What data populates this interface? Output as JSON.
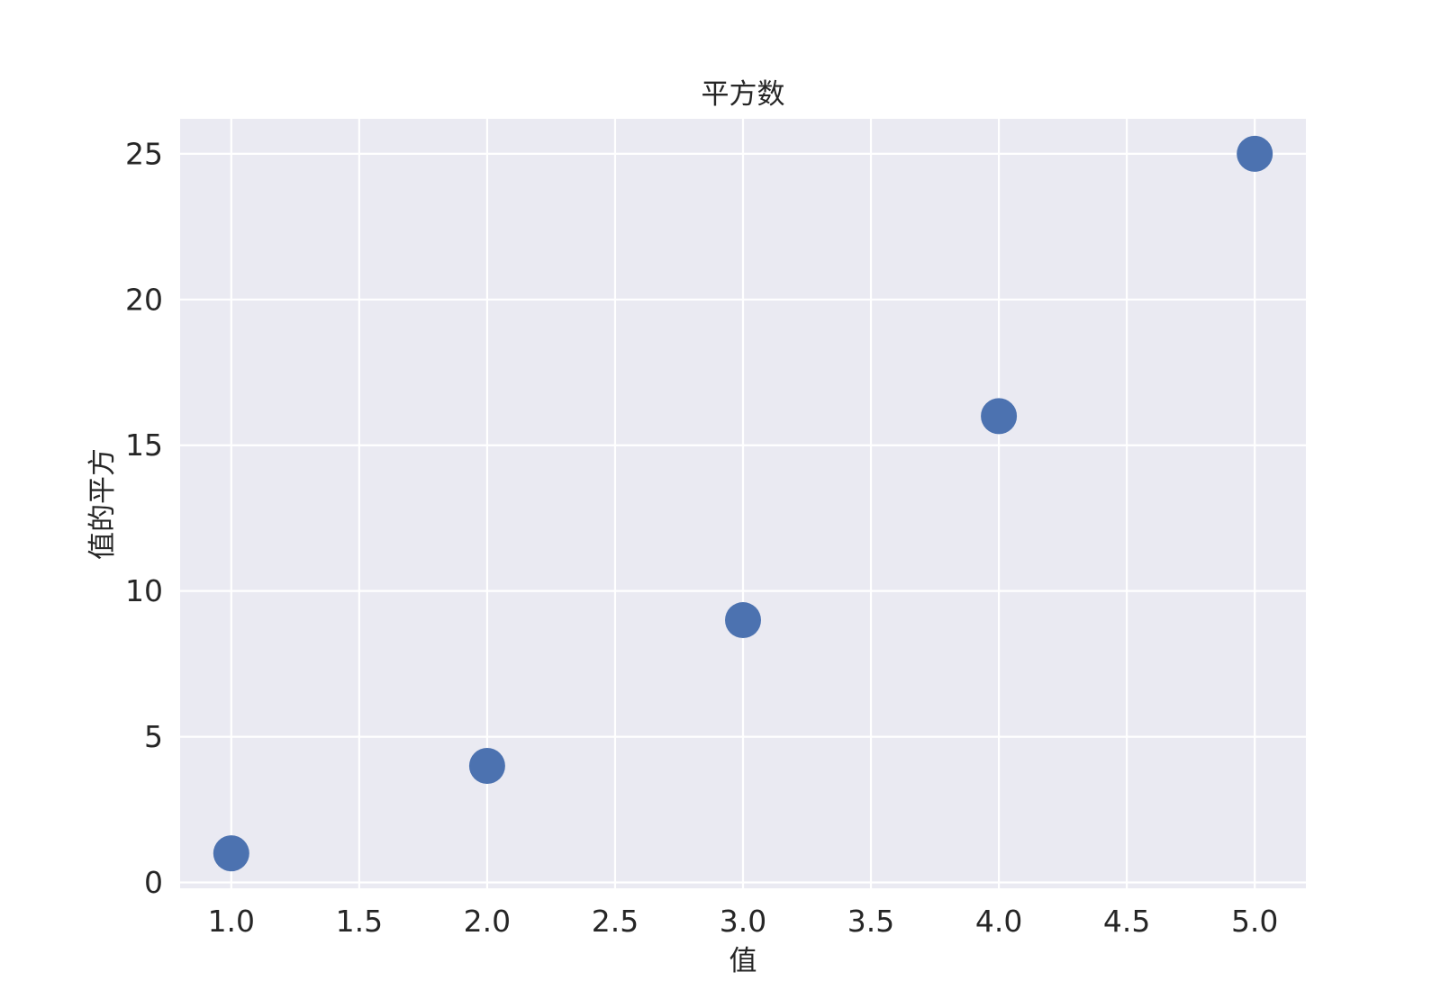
{
  "chart_data": {
    "type": "scatter",
    "title": "平方数",
    "xlabel": "值",
    "ylabel": "值的平方",
    "x": [
      1,
      2,
      3,
      4,
      5
    ],
    "y": [
      1,
      4,
      9,
      16,
      25
    ],
    "xlim": [
      0.8,
      5.2
    ],
    "ylim": [
      -0.2,
      26.2
    ],
    "xticks": [
      1.0,
      1.5,
      2.0,
      2.5,
      3.0,
      3.5,
      4.0,
      4.5,
      5.0
    ],
    "xtick_labels": [
      "1.0",
      "1.5",
      "2.0",
      "2.5",
      "3.0",
      "3.5",
      "4.0",
      "4.5",
      "5.0"
    ],
    "yticks": [
      0,
      5,
      10,
      15,
      20,
      25
    ],
    "ytick_labels": [
      "0",
      "5",
      "10",
      "15",
      "20",
      "25"
    ],
    "grid": true,
    "colors": {
      "marker": "#4c72b0",
      "plot_background": "#eaeaf2",
      "grid": "#ffffff",
      "text": "#262626"
    }
  }
}
